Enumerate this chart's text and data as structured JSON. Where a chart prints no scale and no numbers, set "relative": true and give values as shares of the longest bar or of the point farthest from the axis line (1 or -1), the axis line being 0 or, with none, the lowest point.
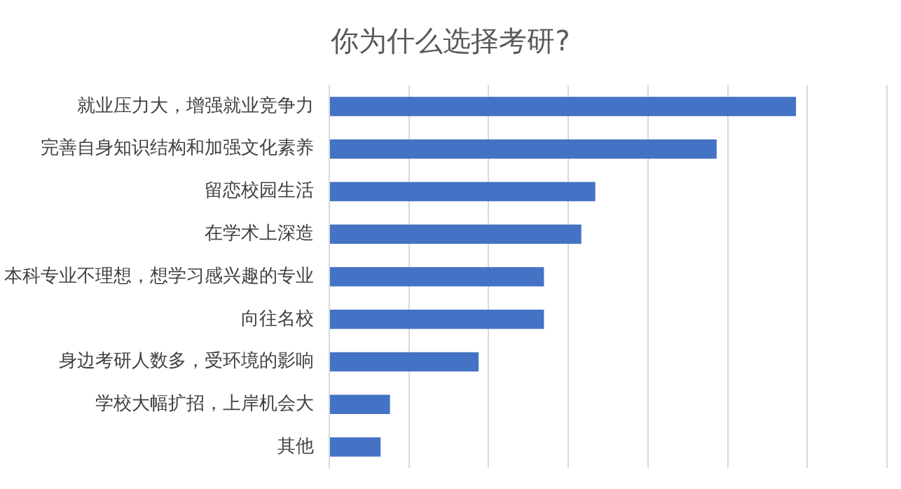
{
  "chart_data": {
    "type": "bar",
    "orientation": "horizontal",
    "relative": true,
    "title": "你为什么选择考研?",
    "categories": [
      "就业压力大，增强就业竞争力",
      "完善自身知识结构和加强文化素养",
      "留恋校园生活",
      "在学术上深造",
      "本科专业不理想，想学习感兴趣的专业",
      "向往名校",
      "身边考研人数多，受环境的影响",
      "学校大幅扩招，上岸机会大",
      "其他"
    ],
    "values": [
      1,
      0.83,
      0.57,
      0.54,
      0.46,
      0.46,
      0.32,
      0.13,
      0.11
    ],
    "color": "#4472c4",
    "grid": "x",
    "legend": false
  }
}
